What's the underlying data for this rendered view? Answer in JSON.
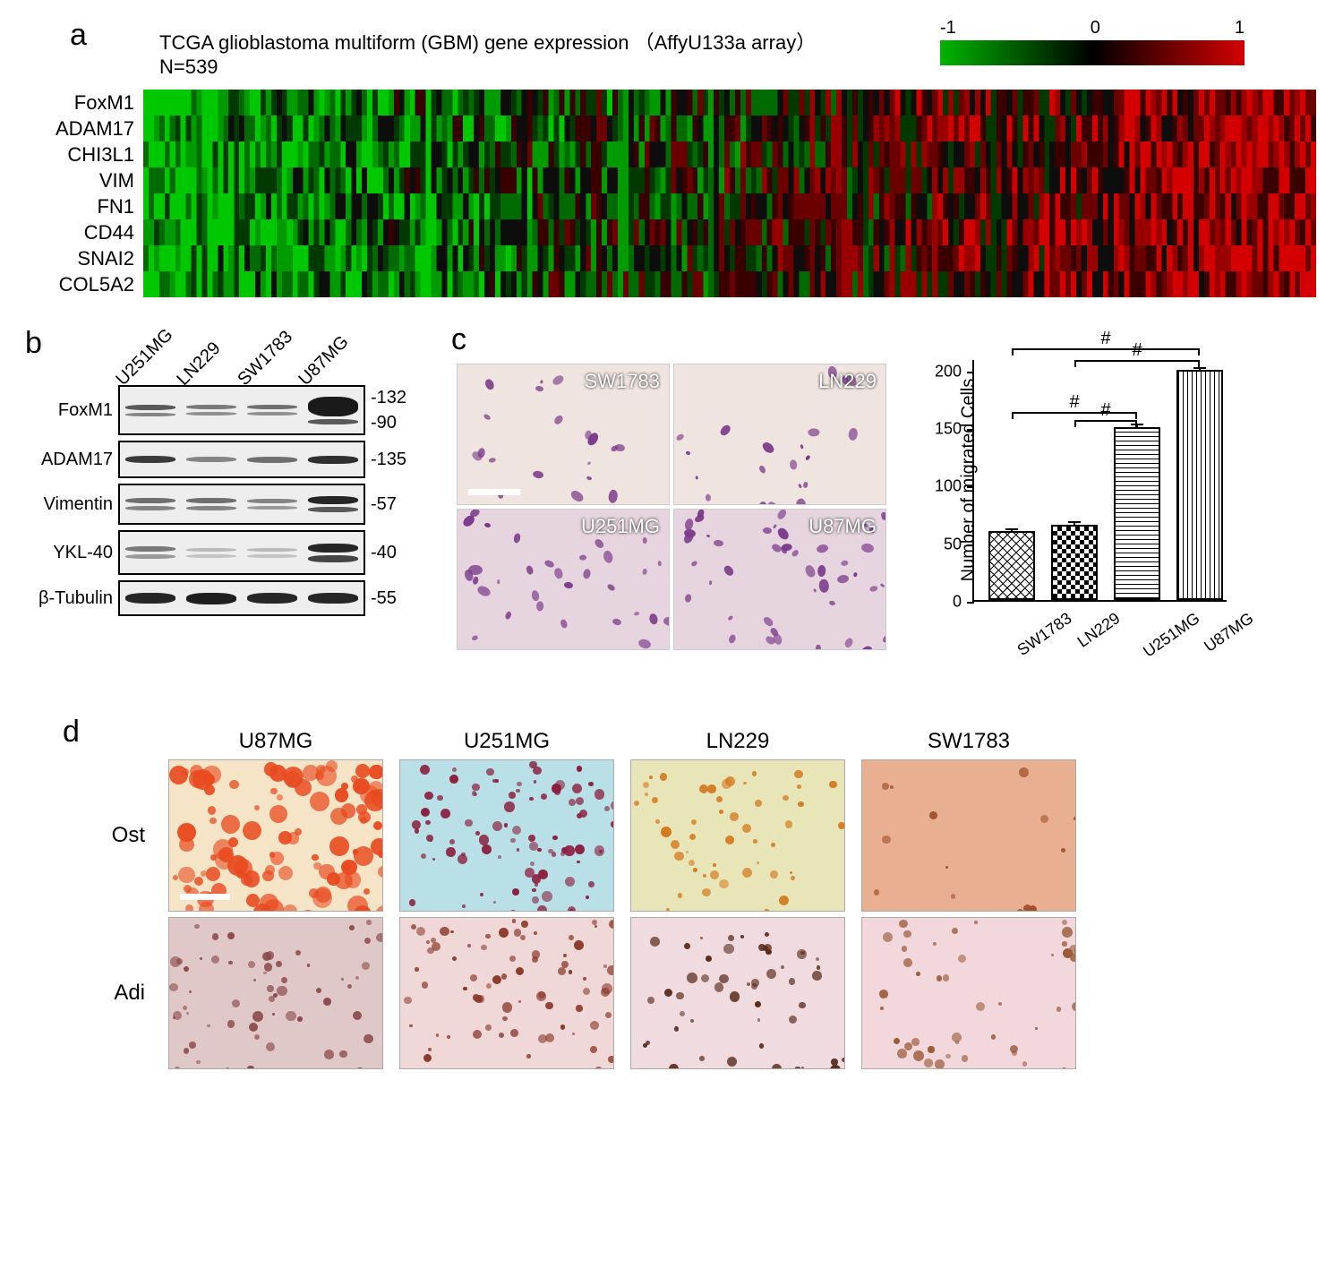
{
  "panelA": {
    "label": "a",
    "title_line1": "TCGA glioblastoma multiform (GBM) gene expression （AffyU133a array）",
    "title_line2": "N=539",
    "colorbar": {
      "min_label": "-1",
      "mid_label": "0",
      "max_label": "1",
      "gradient": [
        "#00b400",
        "#000000",
        "#d40000"
      ]
    },
    "genes": [
      "FoxM1",
      "ADAM17",
      "CHI3L1",
      "VIM",
      "FN1",
      "CD44",
      "SNAI2",
      "COL5A2"
    ],
    "columns": 539,
    "heat_colors": [
      "#00c800",
      "#009b00",
      "#006b00",
      "#003a00",
      "#0d0d0d",
      "#3a0000",
      "#6b0000",
      "#9b0000",
      "#d40000"
    ]
  },
  "panelB": {
    "label": "b",
    "lanes": [
      "U251MG",
      "LN229",
      "SW1783",
      "U87MG"
    ],
    "lane_width": 68,
    "rows": [
      {
        "label": "FoxM1",
        "height": 56,
        "markers": [
          "-132",
          "-90"
        ],
        "bands": [
          [
            0.7,
            6,
            0.5,
            4
          ],
          [
            0.55,
            5,
            0.45,
            4
          ],
          [
            0.6,
            5,
            0.45,
            4
          ],
          [
            1.0,
            22,
            0.7,
            6
          ]
        ]
      },
      {
        "label": "ADAM17",
        "height": 42,
        "markers": [
          "-135"
        ],
        "bands": [
          [
            0.85,
            8
          ],
          [
            0.5,
            6
          ],
          [
            0.6,
            7
          ],
          [
            0.9,
            9
          ]
        ]
      },
      {
        "label": "Vimentin",
        "height": 46,
        "markers": [
          "-57"
        ],
        "bands": [
          [
            0.6,
            6,
            0.5,
            5
          ],
          [
            0.6,
            6,
            0.5,
            5
          ],
          [
            0.5,
            5,
            0.4,
            4
          ],
          [
            0.95,
            9,
            0.7,
            6
          ]
        ]
      },
      {
        "label": "YKL-40",
        "height": 50,
        "markers": [
          "-40"
        ],
        "bands": [
          [
            0.55,
            6,
            0.4,
            5
          ],
          [
            0.25,
            4,
            0.2,
            4
          ],
          [
            0.25,
            4,
            0.2,
            4
          ],
          [
            0.95,
            10,
            0.8,
            8
          ]
        ]
      },
      {
        "label": "β-Tubulin",
        "height": 40,
        "markers": [
          "-55"
        ],
        "bands": [
          [
            0.95,
            12
          ],
          [
            0.98,
            13
          ],
          [
            0.95,
            12
          ],
          [
            0.95,
            12
          ]
        ]
      }
    ]
  },
  "panelC": {
    "label": "c",
    "cells": [
      {
        "name": "SW1783",
        "density": 0.25,
        "bg": "#f0e4e0"
      },
      {
        "name": "LN229",
        "density": 0.25,
        "bg": "#f0e4e0"
      },
      {
        "name": "U251MG",
        "density": 0.55,
        "bg": "#e6d4de"
      },
      {
        "name": "U87MG",
        "density": 0.85,
        "bg": "#e6d4de"
      }
    ],
    "cell_color": "#7a3a8a",
    "chart": {
      "ylabel": "Number of  migrated Cells",
      "ymax": 210,
      "ytick_step": 50,
      "yticks": [
        0,
        50,
        100,
        150,
        200
      ],
      "bars": [
        {
          "label": "SW1783",
          "value": 60,
          "err": 4,
          "pattern": "diamond"
        },
        {
          "label": "LN229",
          "value": 65,
          "err": 5,
          "pattern": "checker"
        },
        {
          "label": "U251MG",
          "value": 150,
          "err": 5,
          "pattern": "hstripe"
        },
        {
          "label": "U87MG",
          "value": 200,
          "err": 4,
          "pattern": "vstripe"
        }
      ],
      "bar_gap": 70,
      "sig_marker": "#",
      "comparisons": [
        {
          "i": 0,
          "j": 3,
          "y": 220
        },
        {
          "i": 1,
          "j": 3,
          "y": 210
        },
        {
          "i": 0,
          "j": 2,
          "y": 165
        },
        {
          "i": 1,
          "j": 2,
          "y": 158
        }
      ]
    }
  },
  "panelD": {
    "label": "d",
    "columns": [
      "U87MG",
      "U251MG",
      "LN229",
      "SW1783"
    ],
    "rows": [
      "Ost",
      "Adi"
    ],
    "images": {
      "ost": [
        {
          "bg": "#f6e4c6",
          "spot": "#e84a1f",
          "density": 0.8,
          "big": true
        },
        {
          "bg": "#b8e0e6",
          "spot": "#8b1f3f",
          "density": 0.7
        },
        {
          "bg": "#e8e6b8",
          "spot": "#d47a1f",
          "density": 0.35
        },
        {
          "bg": "#e8b090",
          "spot": "#a0502a",
          "density": 0.05
        }
      ],
      "adi": [
        {
          "bg": "#e0c8c8",
          "spot": "#8b4a4a",
          "density": 0.45
        },
        {
          "bg": "#f0d8d8",
          "spot": "#8b3a2a",
          "density": 0.55
        },
        {
          "bg": "#f0dce0",
          "spot": "#5a2a1a",
          "density": 0.35
        },
        {
          "bg": "#f2d8dc",
          "spot": "#9a5a3a",
          "density": 0.3
        }
      ]
    }
  }
}
